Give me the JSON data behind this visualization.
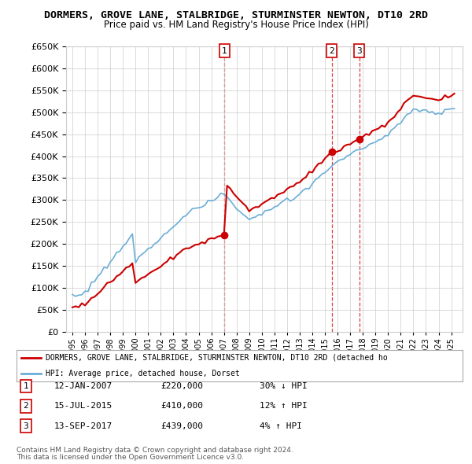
{
  "title": "DORMERS, GROVE LANE, STALBRIDGE, STURMINSTER NEWTON, DT10 2RD",
  "subtitle": "Price paid vs. HM Land Registry's House Price Index (HPI)",
  "ylim": [
    0,
    650000
  ],
  "yticks": [
    0,
    50000,
    100000,
    150000,
    200000,
    250000,
    300000,
    350000,
    400000,
    450000,
    500000,
    550000,
    600000,
    650000
  ],
  "sale_dates": [
    2007.04,
    2015.54,
    2017.71
  ],
  "sale_prices": [
    220000,
    410000,
    439000
  ],
  "sale_labels": [
    "1",
    "2",
    "3"
  ],
  "legend_red": "DORMERS, GROVE LANE, STALBRIDGE, STURMINSTER NEWTON, DT10 2RD (detached ho",
  "legend_blue": "HPI: Average price, detached house, Dorset",
  "table_rows": [
    [
      "1",
      "12-JAN-2007",
      "£220,000",
      "30% ↓ HPI"
    ],
    [
      "2",
      "15-JUL-2015",
      "£410,000",
      "12% ↑ HPI"
    ],
    [
      "3",
      "13-SEP-2017",
      "£439,000",
      "4% ↑ HPI"
    ]
  ],
  "footnote1": "Contains HM Land Registry data © Crown copyright and database right 2024.",
  "footnote2": "This data is licensed under the Open Government Licence v3.0.",
  "hpi_color": "#6baed6",
  "price_color": "#cc0000",
  "vline_color": "#cc0000",
  "background_color": "#ffffff"
}
